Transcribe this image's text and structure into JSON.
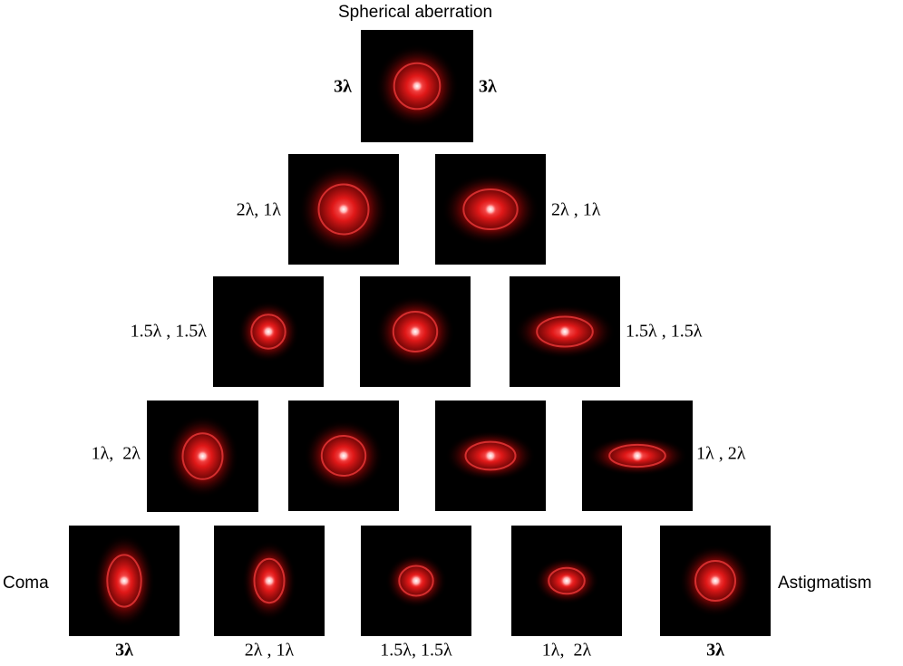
{
  "title": "Spherical aberration",
  "rows": [
    {
      "left": "3λ",
      "right": "3λ"
    },
    {
      "left": "2λ, 1λ",
      "right": "2λ , 1λ"
    },
    {
      "left": "1.5λ , 1.5λ",
      "right": "1.5λ , 1.5λ"
    },
    {
      "left": "1λ,  2λ",
      "right": "1λ , 2λ"
    }
  ],
  "bottom": {
    "left": "Coma",
    "right": "Astigmatism",
    "labels": [
      "3λ",
      "2λ , 1λ",
      "1.5λ, 1.5λ",
      "1λ,  2λ",
      "3λ"
    ]
  }
}
